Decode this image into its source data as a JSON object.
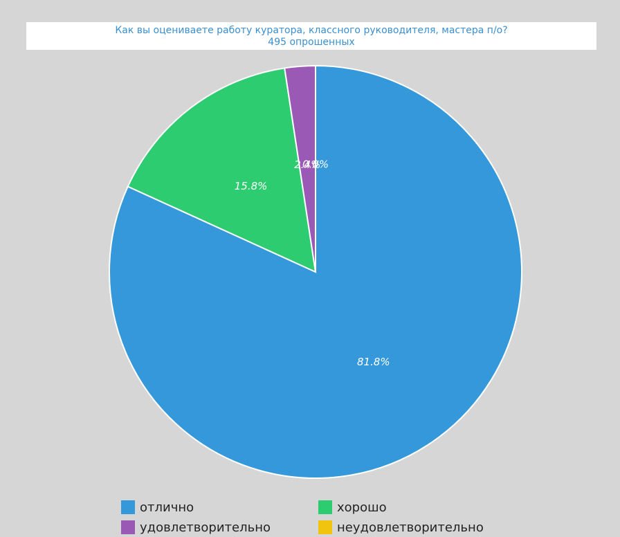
{
  "chart_data": {
    "type": "pie",
    "title": "Как вы оцениваете работу куратора, классного руководителя, мастера п/о?",
    "subtitle": "495 опрошенных",
    "categories": [
      "отлично",
      "хорошо",
      "удовлетворительно",
      "неудовлетворительно"
    ],
    "values": [
      81.8,
      15.8,
      2.4,
      0.0
    ],
    "value_labels": [
      "81.8%",
      "15.8%",
      "2.4%",
      "0.0%"
    ],
    "colors": [
      "#3498db",
      "#2ecc71",
      "#9b59b6",
      "#f1c40f"
    ],
    "legend": "bottom"
  }
}
